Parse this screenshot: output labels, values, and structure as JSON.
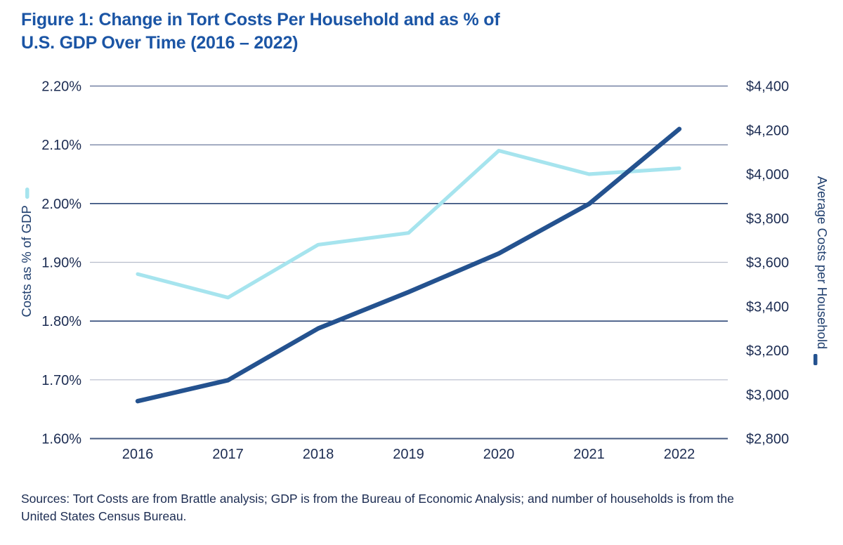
{
  "title": "Figure 1: Change in Tort Costs Per Household and as % of\nU.S. GDP Over Time (2016 – 2022)",
  "sources": "Sources: Tort Costs are from Brattle analysis; GDP is from the Bureau of Economic Analysis; and number of households is from the\nUnited States Census Bureau.",
  "colors": {
    "title": "#1b55a5",
    "tick_text": "#1c2c52",
    "axis_title_text": "#21406f",
    "gdp_line": "#a6e4ee",
    "household_line": "#24528f",
    "gridlines": {
      "medium": "#5c6c92",
      "dark": "#2f4878",
      "light": "#b6bccb",
      "axis": "#44597f"
    }
  },
  "chart_data": {
    "type": "line",
    "title": "Figure 1: Change in Tort Costs Per Household and as % of U.S. GDP Over Time (2016 – 2022)",
    "categories": [
      "2016",
      "2017",
      "2018",
      "2019",
      "2020",
      "2021",
      "2022"
    ],
    "series": [
      {
        "name": "Costs as % of GDP",
        "axis": "left",
        "color": "#a6e4ee",
        "values": [
          1.88,
          1.84,
          1.93,
          1.95,
          2.09,
          2.05,
          2.06
        ]
      },
      {
        "name": "Average Costs per Household",
        "axis": "right",
        "color": "#24528f",
        "values": [
          2970,
          3065,
          3300,
          3465,
          3640,
          3865,
          4205
        ]
      }
    ],
    "left_axis": {
      "label": "Costs as % of GDP",
      "min": 1.6,
      "max": 2.2,
      "step": 0.1,
      "ticks": [
        "2.20%",
        "2.10%",
        "2.00%",
        "1.90%",
        "1.80%",
        "1.70%",
        "1.60%"
      ]
    },
    "right_axis": {
      "label": "Average Costs per Household",
      "min": 2800,
      "max": 4400,
      "step": 200,
      "ticks": [
        "$4,400",
        "$4,200",
        "$4,000",
        "$3,800",
        "$3,600",
        "$3,400",
        "$3,200",
        "$3,000",
        "$2,800"
      ]
    },
    "gridline_shades": [
      "medium",
      "medium",
      "dark",
      "light",
      "dark",
      "light",
      "axis"
    ],
    "grid": true,
    "legend_position": "axis-titles"
  }
}
